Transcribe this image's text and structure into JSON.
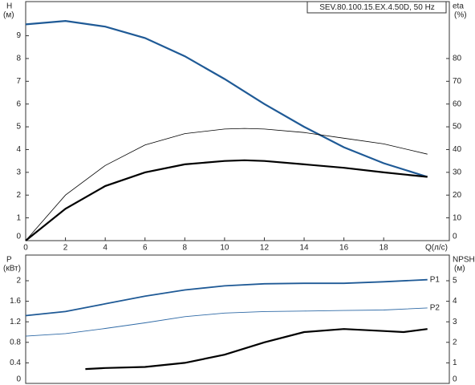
{
  "chart_data": [
    {
      "type": "line",
      "title": "SEV.80.100.15.EX.4.50D, 50 Hz",
      "ylabel": "H",
      "yunit": "(м)",
      "y2label": "eta",
      "y2unit": "(%)",
      "xlabel": "Q(л/с)",
      "xlim": [
        0,
        21.3
      ],
      "xticks": [
        0,
        2,
        4,
        6,
        8,
        10,
        12,
        14,
        16,
        18
      ],
      "ylim": [
        0,
        10.5
      ],
      "yticks": [
        0,
        1,
        2,
        3,
        4,
        5,
        6,
        7,
        8,
        9
      ],
      "y2lim": [
        0,
        105
      ],
      "y2ticks": [
        0,
        10,
        20,
        30,
        40,
        50,
        60,
        70,
        80
      ],
      "series": [
        {
          "color": "#1f5a96",
          "width": 2.2,
          "x": [
            0,
            2,
            4,
            6,
            8,
            10,
            12,
            14,
            16,
            18,
            20.2
          ],
          "values": [
            9.5,
            9.65,
            9.4,
            8.9,
            8.1,
            7.1,
            6.0,
            5.0,
            4.1,
            3.4,
            2.8
          ]
        },
        {
          "color": "#000000",
          "width": 0.8,
          "axis": "y2",
          "x": [
            0,
            2,
            4,
            6,
            8,
            10,
            11,
            12,
            14,
            16,
            18,
            20.2
          ],
          "values": [
            0,
            20,
            33,
            42,
            47,
            49,
            49.3,
            49,
            47.5,
            45,
            42.5,
            38
          ]
        },
        {
          "color": "#000000",
          "width": 2.2,
          "axis": "y2",
          "x": [
            0,
            2,
            4,
            6,
            8,
            10,
            11,
            12,
            14,
            16,
            18,
            20.2
          ],
          "values": [
            0,
            14,
            24,
            30,
            33.5,
            35,
            35.3,
            35,
            33.5,
            32,
            30,
            28
          ]
        }
      ]
    },
    {
      "type": "line",
      "ylabel": "P",
      "yunit": "(кВт)",
      "y2label": "NPSH",
      "y2unit": "(м)",
      "xlim": [
        0,
        21.3
      ],
      "ylim": [
        0,
        2.5
      ],
      "yticks": [
        0,
        0.4,
        0.8,
        1.2,
        1.6,
        2
      ],
      "y2lim": [
        0,
        6.25
      ],
      "y2ticks": [
        0,
        1,
        2,
        3,
        4,
        5
      ],
      "series": [
        {
          "name": "P1",
          "color": "#1f5a96",
          "width": 1.8,
          "x": [
            0,
            2,
            4,
            6,
            8,
            10,
            12,
            14,
            16,
            18,
            20.2
          ],
          "values": [
            1.32,
            1.4,
            1.55,
            1.7,
            1.82,
            1.9,
            1.94,
            1.95,
            1.95,
            1.98,
            2.02
          ]
        },
        {
          "name": "P2",
          "color": "#2f6aa6",
          "width": 0.9,
          "x": [
            0,
            2,
            4,
            6,
            8,
            10,
            12,
            14,
            16,
            18,
            20.2
          ],
          "values": [
            0.92,
            0.97,
            1.07,
            1.18,
            1.3,
            1.37,
            1.4,
            1.41,
            1.42,
            1.43,
            1.47
          ]
        },
        {
          "color": "#000000",
          "width": 2.2,
          "axis": "y2",
          "x": [
            3,
            4,
            6,
            8,
            10,
            12,
            14,
            16,
            18,
            19,
            20.2
          ],
          "values": [
            0.7,
            0.75,
            0.8,
            1.0,
            1.4,
            2.0,
            2.5,
            2.65,
            2.55,
            2.5,
            2.65
          ]
        }
      ]
    }
  ]
}
